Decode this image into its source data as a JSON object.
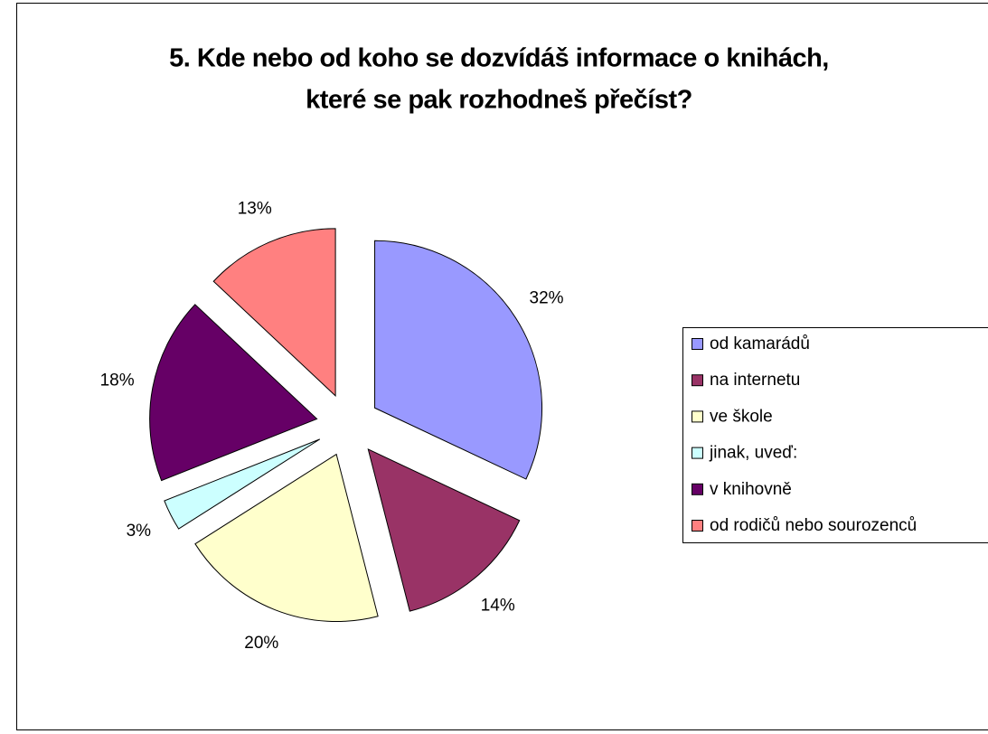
{
  "chart_data": {
    "type": "pie",
    "title": [
      "5. Kde nebo od koho se dozvídáš informace o knihách,",
      "které se pak rozhodneš přečíst?"
    ],
    "categories": [
      "od kamarádů",
      "na internetu",
      "ve škole",
      "jinak, uveď:",
      "v knihovně",
      "od rodičů nebo sourozenců"
    ],
    "values": [
      32,
      14,
      20,
      3,
      18,
      13
    ],
    "value_labels": [
      "32%",
      "14%",
      "20%",
      "3%",
      "18%",
      "13%"
    ],
    "colors": [
      "#9999ff",
      "#993366",
      "#ffffcc",
      "#ccffff",
      "#660066",
      "#ff8080"
    ],
    "legend": "right"
  }
}
